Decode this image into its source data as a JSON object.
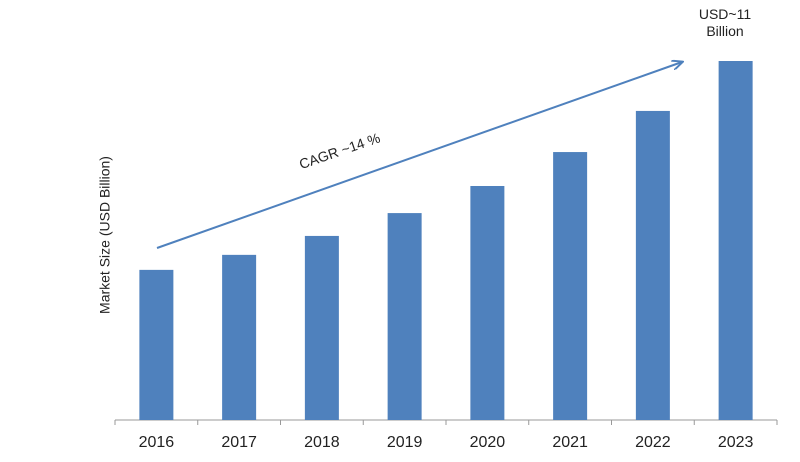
{
  "chart_data": {
    "type": "bar",
    "categories": [
      "2016",
      "2017",
      "2018",
      "2019",
      "2020",
      "2021",
      "2022",
      "2023"
    ],
    "values": [
      4.6,
      5.06,
      5.64,
      6.34,
      7.17,
      8.21,
      9.47,
      11
    ],
    "color": "#4f81bd",
    "y_label": "Market Size (USD Billion)",
    "annotations": [
      "CAGR ~14 %",
      "USD~11 Billion"
    ]
  }
}
